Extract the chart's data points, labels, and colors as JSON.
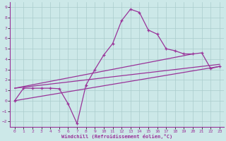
{
  "xlabel": "Windchill (Refroidissement éolien,°C)",
  "ylabel": "",
  "background_color": "#cce8e8",
  "grid_color": "#aacccc",
  "line_color": "#993399",
  "xlim": [
    -0.5,
    23.5
  ],
  "ylim": [
    -2.5,
    9.5
  ],
  "xticks": [
    0,
    1,
    2,
    3,
    4,
    5,
    6,
    7,
    8,
    9,
    10,
    11,
    12,
    13,
    14,
    15,
    16,
    17,
    18,
    19,
    20,
    21,
    22,
    23
  ],
  "yticks": [
    -2,
    -1,
    0,
    1,
    2,
    3,
    4,
    5,
    6,
    7,
    8,
    9
  ],
  "curve1_x": [
    0,
    1,
    2,
    3,
    4,
    5,
    6,
    7,
    8,
    9,
    10,
    11,
    12,
    13,
    14,
    15,
    16,
    17,
    18,
    19,
    20,
    21,
    22,
    23
  ],
  "curve1_y": [
    0.0,
    1.2,
    1.2,
    1.2,
    1.2,
    1.15,
    -0.3,
    -2.2,
    1.5,
    3.0,
    4.4,
    5.5,
    7.7,
    8.8,
    8.5,
    6.8,
    6.4,
    5.0,
    4.8,
    4.5,
    4.5,
    4.6,
    3.1,
    3.3
  ],
  "line1_x": [
    0,
    23
  ],
  "line1_y": [
    0.0,
    3.3
  ],
  "line2_x": [
    0,
    20
  ],
  "line2_y": [
    1.2,
    4.5
  ],
  "line3_x": [
    0,
    23
  ],
  "line3_y": [
    1.2,
    3.5
  ]
}
